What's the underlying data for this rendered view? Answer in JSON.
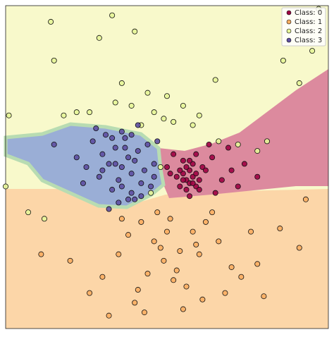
{
  "chart_data": {
    "type": "scatter",
    "xlim": [
      0,
      10
    ],
    "ylim": [
      0,
      10
    ],
    "legend": "upper right",
    "series": [
      {
        "name": "Class: 0",
        "color": "#9e0142",
        "x": [
          5.5,
          5.6,
          5.7,
          5.8,
          5.9,
          5.6,
          5.7,
          5.8,
          5.5,
          5.4,
          6.0,
          6.1,
          5.3,
          5.9,
          5.7,
          5.6,
          6.2,
          5.8,
          5.5,
          6.4,
          6.7,
          7.0,
          7.4,
          7.8,
          5.2,
          5.1,
          6.5,
          6.9,
          7.2,
          5.0,
          6.3,
          6.0,
          5.7,
          5.9,
          5.4
        ],
        "values": [
          4.8,
          4.6,
          4.9,
          4.7,
          4.8,
          5.0,
          4.5,
          5.1,
          4.6,
          4.9,
          4.6,
          5.0,
          4.7,
          4.4,
          5.2,
          4.3,
          4.9,
          4.5,
          5.2,
          5.3,
          4.6,
          4.9,
          5.1,
          4.7,
          5.4,
          4.8,
          4.2,
          5.6,
          4.4,
          5.0,
          5.7,
          4.3,
          4.1,
          5.4,
          4.4
        ]
      },
      {
        "name": "Class: 1",
        "color": "#fdae61",
        "x": [
          5.0,
          4.6,
          5.4,
          4.2,
          5.8,
          3.8,
          6.2,
          4.9,
          5.3,
          4.4,
          6.6,
          3.5,
          5.6,
          4.1,
          7.0,
          3.0,
          6.0,
          5.1,
          4.7,
          7.6,
          8.5,
          9.1,
          1.1,
          2.0,
          3.2,
          4.0,
          5.5,
          6.8,
          7.3,
          8.0,
          4.8,
          3.6,
          6.4,
          5.9,
          9.3,
          2.6,
          4.3,
          5.2,
          7.8,
          6.1
        ],
        "values": [
          3.0,
          2.7,
          2.4,
          3.3,
          3.0,
          2.9,
          3.3,
          2.1,
          1.8,
          1.7,
          2.7,
          2.3,
          1.3,
          1.2,
          1.9,
          1.6,
          2.3,
          3.4,
          3.6,
          3.0,
          3.1,
          2.5,
          2.3,
          2.1,
          0.4,
          0.8,
          0.6,
          1.1,
          1.6,
          1.0,
          2.5,
          3.4,
          3.6,
          2.6,
          4.0,
          1.1,
          0.5,
          1.5,
          2.0,
          0.9
        ]
      },
      {
        "name": "Class: 2",
        "color": "#e6f598",
        "x": [
          1.4,
          1.5,
          1.8,
          0.1,
          2.2,
          2.6,
          3.4,
          3.9,
          4.2,
          4.6,
          5.0,
          5.5,
          6.0,
          6.6,
          7.2,
          7.8,
          8.1,
          9.1,
          9.5,
          9.7,
          3.6,
          4.4,
          5.8,
          4.9,
          2.9,
          3.3,
          4.0,
          6.5,
          8.6,
          0.0,
          1.2,
          4.5,
          4.8,
          5.2,
          0.7
        ],
        "values": [
          9.5,
          8.3,
          6.6,
          6.6,
          6.7,
          6.7,
          7.0,
          6.9,
          6.3,
          6.7,
          7.2,
          6.9,
          6.6,
          5.8,
          5.7,
          5.5,
          5.8,
          7.6,
          8.6,
          9.9,
          7.6,
          7.3,
          6.3,
          6.5,
          9.0,
          9.7,
          9.2,
          7.7,
          8.3,
          4.4,
          3.4,
          4.2,
          5.0,
          6.4,
          3.6
        ]
      },
      {
        "name": "Class: 3",
        "color": "#5e4fa2",
        "x": [
          3.6,
          3.8,
          3.4,
          3.9,
          4.1,
          3.2,
          3.5,
          3.7,
          4.0,
          4.3,
          3.0,
          2.7,
          2.5,
          3.3,
          3.9,
          4.4,
          4.6,
          4.2,
          3.6,
          2.9,
          3.1,
          3.8,
          4.5,
          3.4,
          2.8,
          3.7,
          4.0,
          3.5,
          2.4,
          4.7,
          3.3,
          3.9,
          4.2,
          3.0,
          3.6,
          4.1,
          1.5,
          2.2,
          4.6,
          3.2
        ],
        "values": [
          5.0,
          5.3,
          5.6,
          4.8,
          5.5,
          5.1,
          4.6,
          5.9,
          5.2,
          4.9,
          5.4,
          5.8,
          5.0,
          4.3,
          4.2,
          5.7,
          5.1,
          4.5,
          6.1,
          4.7,
          6.0,
          4.0,
          4.4,
          5.1,
          6.2,
          5.6,
          4.0,
          3.9,
          4.5,
          5.8,
          5.9,
          6.0,
          4.1,
          4.9,
          4.4,
          6.3,
          5.7,
          5.3,
          4.7,
          3.7
        ]
      }
    ]
  }
}
